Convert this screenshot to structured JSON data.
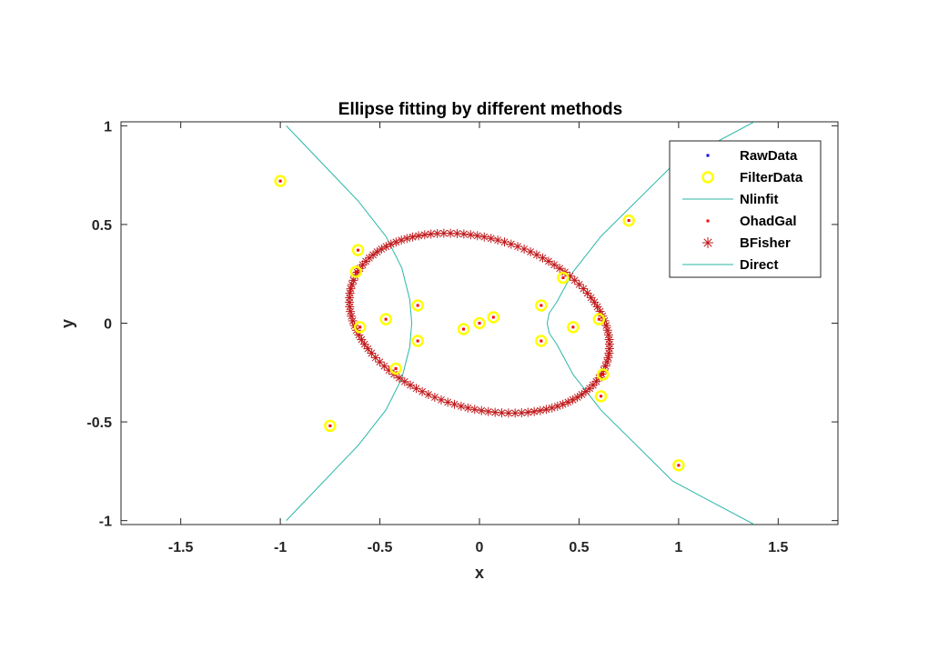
{
  "chart_data": {
    "type": "scatter",
    "title": "Ellipse fitting by different methods",
    "xlabel": "x",
    "ylabel": "y",
    "xlim": [
      -1.8,
      1.8
    ],
    "ylim": [
      -1.02,
      1.02
    ],
    "xticks": [
      -1.5,
      -1,
      -0.5,
      0,
      0.5,
      1,
      1.5
    ],
    "xtick_labels": [
      "-1.5",
      "-1",
      "-0.5",
      "0",
      "0.5",
      "1",
      "1.5"
    ],
    "yticks": [
      -1,
      -0.5,
      0,
      0.5,
      1
    ],
    "ytick_labels": [
      "-1",
      "-0.5",
      "0",
      "0.5",
      "1"
    ],
    "grid": false,
    "legend_position": "top-right",
    "points": {
      "x": [
        -1.0,
        -0.75,
        -0.61,
        -0.62,
        -0.6,
        -0.47,
        -0.42,
        -0.31,
        -0.31,
        -0.08,
        0.0,
        0.07,
        0.31,
        0.31,
        0.42,
        0.47,
        0.6,
        0.61,
        0.62,
        0.75,
        1.0
      ],
      "y": [
        0.72,
        -0.52,
        0.37,
        0.26,
        -0.02,
        0.02,
        -0.23,
        0.09,
        -0.09,
        -0.03,
        0.0,
        0.03,
        0.09,
        -0.09,
        0.23,
        -0.02,
        0.02,
        -0.37,
        -0.26,
        0.52,
        -0.72
      ]
    },
    "ellipse": {
      "center": [
        0.0,
        0.0
      ],
      "semi_axes": [
        0.67,
        0.43
      ],
      "rotation_deg": -17
    },
    "hyperbola": {
      "branch_left": {
        "x": [
          -0.97,
          -0.61,
          -0.47,
          -0.39,
          -0.35,
          -0.34,
          -0.35,
          -0.39,
          -0.47,
          -0.61,
          -0.97
        ],
        "y": [
          1.0,
          0.62,
          0.44,
          0.28,
          0.12,
          0.0,
          -0.12,
          -0.28,
          -0.44,
          -0.62,
          -1.0
        ]
      },
      "branch_right": {
        "x": [
          1.38,
          0.97,
          0.61,
          0.47,
          0.39,
          0.35,
          0.34,
          0.35,
          0.39,
          0.47,
          0.61,
          0.97,
          1.38
        ],
        "y": [
          1.02,
          0.8,
          0.44,
          0.26,
          0.11,
          0.05,
          0.0,
          -0.05,
          -0.11,
          -0.26,
          -0.44,
          -0.8,
          -1.02
        ]
      }
    },
    "series": [
      {
        "name": "RawData",
        "marker": "dot",
        "color": "#0000ff"
      },
      {
        "name": "FilterData",
        "marker": "circle",
        "color": "#ffff00"
      },
      {
        "name": "Nlinfit",
        "marker": "line",
        "color": "#2ab7a9"
      },
      {
        "name": "OhadGal",
        "marker": "dot",
        "color": "#ff0000"
      },
      {
        "name": "BFisher",
        "marker": "asterisk",
        "color": "#c0181a"
      },
      {
        "name": "Direct",
        "marker": "line",
        "color": "#2ab7a9"
      }
    ]
  }
}
